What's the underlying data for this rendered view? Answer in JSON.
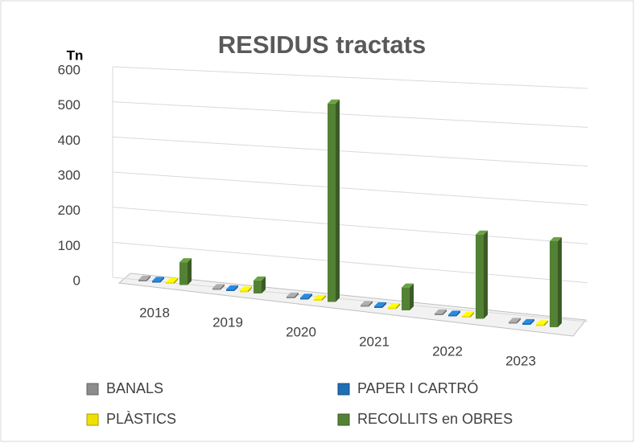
{
  "chart_data": {
    "type": "bar3d",
    "title": "RESIDUS tractats",
    "y_label": "Tn",
    "categories": [
      "2018",
      "2019",
      "2020",
      "2021",
      "2022",
      "2023"
    ],
    "series": [
      {
        "name": "BANALS",
        "color": "#8c8c8c",
        "values": [
          5,
          5,
          5,
          5,
          5,
          5
        ]
      },
      {
        "name": "PAPER I CARTRÓ",
        "color": "#1f6fb5",
        "values": [
          5,
          5,
          5,
          5,
          5,
          5
        ]
      },
      {
        "name": "PLÀSTICS",
        "color": "#f0e000",
        "values": [
          5,
          5,
          5,
          5,
          5,
          5
        ]
      },
      {
        "name": "RECOLLITS en OBRES",
        "color": "#548235",
        "values": [
          65,
          37,
          565,
          65,
          240,
          245
        ]
      }
    ],
    "ylim": [
      0,
      600
    ],
    "yticks": [
      0,
      100,
      200,
      300,
      400,
      500,
      600
    ],
    "grid": true,
    "legend": "bottom"
  }
}
